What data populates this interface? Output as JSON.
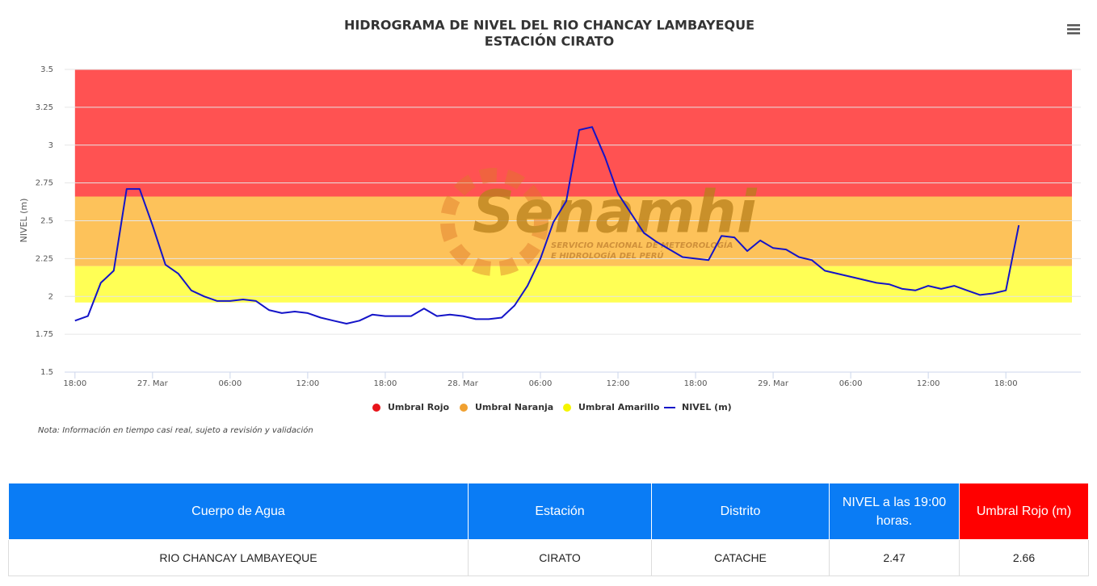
{
  "chart_data": {
    "type": "line",
    "title": "HIDROGRAMA DE NIVEL DEL RIO CHANCAY LAMBAYEQUE",
    "subtitle": "ESTACIÓN CIRATO",
    "y_label": "NIVEL (m)",
    "note": "Nota: Información en tiempo casi real, sujeto a revisión y validación",
    "watermark": {
      "name": "Senamhi",
      "line1": "SERVICIO NACIONAL DE METEOROLOGÍA",
      "line2": "E HIDROLOGÍA DEL PERÚ"
    },
    "ylim": [
      1.5,
      3.5
    ],
    "yticks": [
      1.5,
      1.75,
      2,
      2.25,
      2.5,
      2.75,
      3,
      3.25,
      3.5
    ],
    "xlim": [
      -0.8,
      77.8
    ],
    "xticks": [
      {
        "value": 0,
        "label": "18:00"
      },
      {
        "value": 6,
        "label": "27. Mar"
      },
      {
        "value": 12,
        "label": "06:00"
      },
      {
        "value": 18,
        "label": "12:00"
      },
      {
        "value": 24,
        "label": "18:00"
      },
      {
        "value": 30,
        "label": "28. Mar"
      },
      {
        "value": 36,
        "label": "06:00"
      },
      {
        "value": 42,
        "label": "12:00"
      },
      {
        "value": 48,
        "label": "18:00"
      },
      {
        "value": 54,
        "label": "29. Mar"
      },
      {
        "value": 60,
        "label": "06:00"
      },
      {
        "value": 66,
        "label": "12:00"
      },
      {
        "value": 72,
        "label": "18:00"
      }
    ],
    "grid": true,
    "bands": [
      {
        "name": "Umbral Rojo",
        "color": "#e8141a",
        "fill": "#ff5252",
        "from": 2.66,
        "to": 3.5
      },
      {
        "name": "Umbral Naranja",
        "color": "#f0a030",
        "fill": "#fdc25a",
        "from": 2.2,
        "to": 2.66
      },
      {
        "name": "Umbral Amarillo",
        "color": "#f5f500",
        "fill": "#ffff55",
        "from": 1.96,
        "to": 2.2
      }
    ],
    "x": [
      0,
      1,
      2,
      3,
      4,
      5,
      6,
      7,
      8,
      9,
      10,
      11,
      12,
      13,
      14,
      15,
      16,
      17,
      18,
      19,
      20,
      21,
      22,
      23,
      24,
      25,
      26,
      27,
      28,
      29,
      30,
      31,
      32,
      33,
      34,
      35,
      36,
      37,
      38,
      39,
      40,
      41,
      42,
      43,
      44,
      45,
      46,
      47,
      48,
      49,
      50,
      51,
      52,
      53,
      54,
      55,
      56,
      57,
      58,
      59,
      60,
      61,
      62,
      63,
      64,
      65,
      66,
      67,
      68,
      69,
      70,
      71,
      72,
      73
    ],
    "series": [
      {
        "name": "NIVEL (m)",
        "color": "#1414c8",
        "values": [
          1.84,
          1.87,
          2.09,
          2.17,
          2.71,
          2.71,
          2.47,
          2.21,
          2.15,
          2.04,
          2.0,
          1.97,
          1.97,
          1.98,
          1.97,
          1.91,
          1.89,
          1.9,
          1.89,
          1.86,
          1.84,
          1.82,
          1.84,
          1.88,
          1.87,
          1.87,
          1.87,
          1.92,
          1.87,
          1.88,
          1.87,
          1.85,
          1.85,
          1.86,
          1.94,
          2.07,
          2.25,
          2.49,
          2.63,
          3.1,
          3.12,
          2.92,
          2.68,
          2.55,
          2.42,
          2.36,
          2.31,
          2.26,
          2.25,
          2.24,
          2.4,
          2.39,
          2.3,
          2.37,
          2.32,
          2.31,
          2.26,
          2.24,
          2.17,
          2.15,
          2.13,
          2.11,
          2.09,
          2.08,
          2.05,
          2.04,
          2.07,
          2.05,
          2.07,
          2.04,
          2.01,
          2.02,
          2.04,
          2.47
        ]
      }
    ]
  },
  "table": {
    "header": [
      "Cuerpo de Agua",
      "Estación",
      "Distrito",
      "NIVEL a las 19:00 horas.",
      "Umbral Rojo (m)"
    ],
    "rows": [
      [
        "RIO CHANCAY LAMBAYEQUE",
        "CIRATO",
        "CATACHE",
        "2.47",
        "2.66"
      ]
    ]
  }
}
